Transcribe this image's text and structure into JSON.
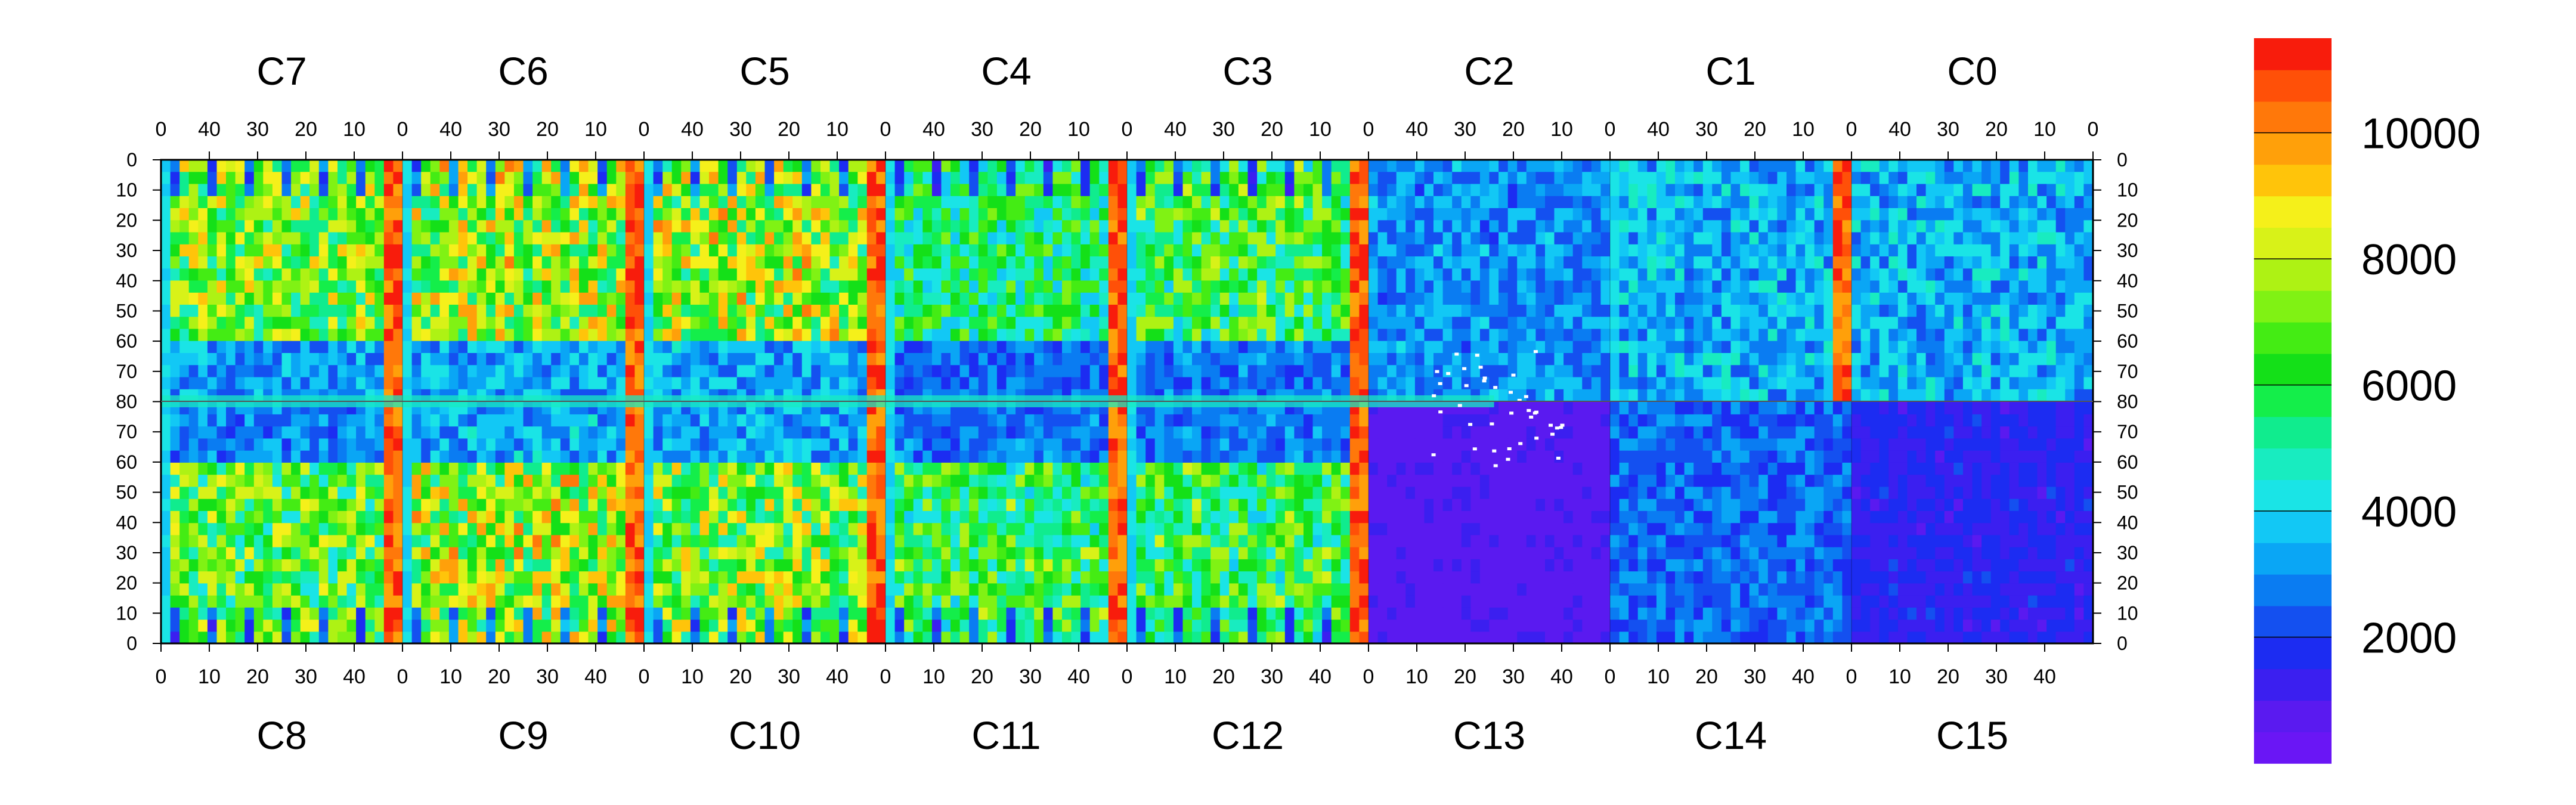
{
  "chart_data": {
    "type": "heatmap",
    "title": "",
    "xlabel": "",
    "ylabel": "",
    "grid": false,
    "legend_placement": "right colorbar",
    "top_chip_labels": [
      "C7",
      "C6",
      "C5",
      "C4",
      "C3",
      "C2",
      "C1",
      "C0"
    ],
    "bottom_chip_labels": [
      "C8",
      "C9",
      "C10",
      "C11",
      "C12",
      "C13",
      "C14",
      "C15"
    ],
    "top_x_tick_labels": [
      "40",
      "30",
      "20",
      "10",
      "0"
    ],
    "bottom_x_tick_labels": [
      "0",
      "10",
      "20",
      "30",
      "40"
    ],
    "y_tick_labels": [
      "0",
      "10",
      "20",
      "30",
      "40",
      "50",
      "60",
      "70",
      "80",
      "70",
      "60",
      "50",
      "40",
      "30",
      "20",
      "10",
      "0"
    ],
    "columns_per_chip": 52,
    "rows_per_half": 80,
    "colorbar": {
      "min": 0,
      "max": 11500,
      "tick_values": [
        2000,
        4000,
        6000,
        8000,
        10000
      ],
      "tick_labels": [
        "2000",
        "4000",
        "6000",
        "8000",
        "10000"
      ],
      "palette": [
        "#6a16f5",
        "#5a1af0",
        "#3b1ff0",
        "#1c2cf2",
        "#1450f0",
        "#0a7cf2",
        "#0aa6f5",
        "#12c8f5",
        "#1ae4e6",
        "#18ecc0",
        "#10ec8e",
        "#14ee4a",
        "#14e018",
        "#44ec14",
        "#80f214",
        "#aef214",
        "#d8f218",
        "#f5f01a",
        "#ffc40a",
        "#ffa00a",
        "#ff780a",
        "#ff5008",
        "#f81c0c"
      ]
    },
    "chips": [
      {
        "name": "C7",
        "half": "top",
        "level": 7000,
        "bright_columns": "right edge red"
      },
      {
        "name": "C6",
        "half": "top",
        "level": 7500,
        "bright_columns": "right edge red"
      },
      {
        "name": "C5",
        "half": "top",
        "level": 7500,
        "bright_columns": "right edge red"
      },
      {
        "name": "C4",
        "half": "top",
        "level": 5500,
        "bright_columns": "right edge red"
      },
      {
        "name": "C3",
        "half": "top",
        "level": 6000,
        "bright_columns": "right edge red"
      },
      {
        "name": "C2",
        "half": "top",
        "level": 3000,
        "bright_columns": "none"
      },
      {
        "name": "C1",
        "half": "top",
        "level": 3500,
        "bright_columns": "right edge red"
      },
      {
        "name": "C0",
        "half": "top",
        "level": 3500,
        "bright_columns": "none"
      },
      {
        "name": "C8",
        "half": "bottom",
        "level": 6500,
        "bright_columns": "right edge red"
      },
      {
        "name": "C9",
        "half": "bottom",
        "level": 7500,
        "bright_columns": "right edge red"
      },
      {
        "name": "C10",
        "half": "bottom",
        "level": 7000,
        "bright_columns": "right edge red"
      },
      {
        "name": "C11",
        "half": "bottom",
        "level": 6000,
        "bright_columns": "right edge red"
      },
      {
        "name": "C12",
        "half": "bottom",
        "level": 6000,
        "bright_columns": "right edge red"
      },
      {
        "name": "C13",
        "half": "bottom",
        "level": 800,
        "bright_columns": "none"
      },
      {
        "name": "C14",
        "half": "bottom",
        "level": 2500,
        "bright_columns": "none"
      },
      {
        "name": "C15",
        "half": "bottom",
        "level": 1500,
        "bright_columns": "none"
      }
    ]
  }
}
